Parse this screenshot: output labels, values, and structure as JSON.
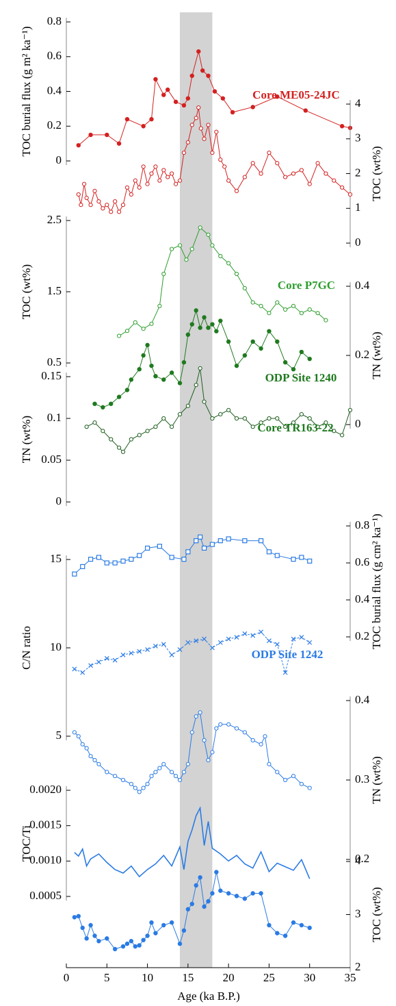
{
  "chart_data": {
    "type": "line",
    "xlabel": "Age (ka B.P.)",
    "xlim": [
      0,
      35
    ],
    "xticks": [
      0,
      5,
      10,
      15,
      20,
      25,
      30,
      35
    ],
    "highlight": [
      14,
      18
    ],
    "highlight_color": "#d3d3d3",
    "annotations": [
      {
        "text": "Core ME05-24JC",
        "color": "#d42020"
      },
      {
        "text": "Core P7GC",
        "color": "#2e9e2e"
      },
      {
        "text": "ODP Site 1240",
        "color": "#1f7a1f"
      },
      {
        "text": "Core TR163-22",
        "color": "#1f7a1f"
      },
      {
        "text": "ODP Site 1242",
        "color": "#2a7be4"
      }
    ],
    "axes": [
      {
        "label": "TOC burial flux (g m² ka⁻¹)",
        "side": "left",
        "ylim": [
          0,
          0.8
        ],
        "yticks": [
          0,
          0.2,
          0.4,
          0.6,
          0.8
        ],
        "series": [
          {
            "color": "#d42020",
            "marker": "filled",
            "dash": false,
            "x": [
              1.5,
              3,
              5,
              6.5,
              7.5,
              9.5,
              10.5,
              11,
              12,
              12.5,
              13.5,
              14.5,
              15,
              15.5,
              16.3,
              16.8,
              17.5,
              18.3,
              19.3,
              20.5,
              23,
              26,
              29.5,
              34,
              35
            ],
            "values": [
              0.09,
              0.15,
              0.15,
              0.1,
              0.24,
              0.2,
              0.24,
              0.47,
              0.38,
              0.41,
              0.34,
              0.32,
              0.36,
              0.49,
              0.63,
              0.52,
              0.49,
              0.4,
              0.36,
              0.28,
              0.31,
              0.37,
              0.29,
              0.2,
              0.19
            ]
          }
        ]
      },
      {
        "label": "TOC (wt%)",
        "side": "right",
        "ylim": [
          0,
          4
        ],
        "yticks": [
          0,
          1,
          2,
          3,
          4
        ],
        "series": [
          {
            "color": "#d42020",
            "marker": "open",
            "dash": false,
            "x": [
              1.5,
              1.8,
              2.2,
              2.5,
              3,
              3.5,
              4,
              4.5,
              5,
              5.5,
              6,
              6.5,
              7,
              7.5,
              8,
              8.5,
              9,
              9.5,
              10,
              10.5,
              11,
              11.5,
              12,
              12.5,
              13,
              13.5,
              14,
              14.5,
              15,
              15.5,
              16,
              16.3,
              16.6,
              17,
              17.5,
              18,
              18.5,
              19,
              19.5,
              20,
              21,
              22,
              23,
              24,
              25,
              26,
              27,
              28,
              29,
              30,
              31,
              32,
              33,
              34,
              35
            ],
            "values": [
              1.4,
              1.1,
              1.7,
              1.3,
              1.1,
              1.5,
              1.2,
              1.0,
              1.1,
              0.9,
              1.2,
              0.9,
              1.1,
              1.6,
              1.4,
              1.8,
              1.6,
              2.2,
              1.7,
              2.0,
              2.2,
              1.8,
              2.1,
              1.9,
              2.0,
              1.7,
              1.8,
              2.6,
              2.9,
              3.4,
              3.6,
              3.9,
              3.3,
              3.0,
              3.4,
              2.6,
              3.2,
              2.4,
              2.2,
              1.8,
              1.5,
              1.9,
              2.3,
              2.0,
              2.6,
              2.3,
              1.9,
              2.0,
              2.1,
              1.7,
              2.3,
              2.0,
              1.8,
              1.6,
              1.4
            ]
          }
        ]
      },
      {
        "label": "TOC (wt%)",
        "side": "left",
        "ylim": [
          0.5,
          2.5
        ],
        "yticks": [
          0.5,
          1.5,
          2.5
        ],
        "series": [
          {
            "color": "#2e9e2e",
            "marker": "open",
            "dash": false,
            "x": [
              6.5,
              7.5,
              8.5,
              9.5,
              10.5,
              11.5,
              12,
              13,
              14,
              14.8,
              15.5,
              16.5,
              17.5,
              18,
              19,
              20,
              21,
              22,
              23,
              24,
              25,
              26,
              27,
              28,
              29,
              30,
              31,
              32
            ],
            "values": [
              0.88,
              0.95,
              1.07,
              0.98,
              1.05,
              1.3,
              1.75,
              2.1,
              2.15,
              1.95,
              2.1,
              2.4,
              2.3,
              2.15,
              2.0,
              1.9,
              1.75,
              1.55,
              1.35,
              1.3,
              1.2,
              1.35,
              1.25,
              1.3,
              1.2,
              1.25,
              1.2,
              1.1
            ]
          }
        ]
      },
      {
        "label": "TN (wt%)",
        "side": "right",
        "ylim": [
          0,
          0.4
        ],
        "yticks": [
          0,
          0.2,
          0.4
        ],
        "series": [
          {
            "color": "#1f7a1f",
            "marker": "filled",
            "dash": false,
            "x": [
              3.5,
              4.5,
              5.5,
              6.5,
              7.5,
              8,
              9,
              9.5,
              10,
              10.5,
              11,
              12,
              13,
              14,
              14.5,
              15,
              15.5,
              16,
              16.5,
              17,
              17.5,
              18,
              18.5,
              19,
              20,
              21,
              22,
              23,
              24,
              25,
              26,
              27,
              28,
              29,
              30
            ],
            "values": [
              0.06,
              0.05,
              0.06,
              0.08,
              0.1,
              0.13,
              0.16,
              0.2,
              0.23,
              0.17,
              0.14,
              0.13,
              0.15,
              0.12,
              0.18,
              0.26,
              0.29,
              0.33,
              0.28,
              0.31,
              0.28,
              0.29,
              0.27,
              0.3,
              0.24,
              0.17,
              0.2,
              0.24,
              0.22,
              0.27,
              0.24,
              0.18,
              0.16,
              0.21,
              0.19
            ]
          }
        ]
      },
      {
        "label": "TN (wt%)",
        "side": "left",
        "ylim": [
          0,
          0.15
        ],
        "yticks": [
          0,
          0.05,
          0.1,
          0.15
        ],
        "series": [
          {
            "color": "#1f5e1f",
            "marker": "open",
            "dash": false,
            "x": [
              2.5,
              3.5,
              4.5,
              5.5,
              6.5,
              7,
              8,
              9,
              10,
              11,
              12,
              13,
              14,
              15,
              16,
              16.5,
              17,
              18,
              19,
              20,
              21,
              22,
              23,
              24,
              25,
              26,
              27,
              28,
              29,
              30,
              31,
              32,
              33,
              34,
              35
            ],
            "values": [
              0.09,
              0.095,
              0.085,
              0.075,
              0.065,
              0.06,
              0.075,
              0.08,
              0.085,
              0.09,
              0.1,
              0.09,
              0.105,
              0.115,
              0.14,
              0.16,
              0.12,
              0.1,
              0.105,
              0.11,
              0.1,
              0.1,
              0.09,
              0.095,
              0.1,
              0.1,
              0.09,
              0.095,
              0.105,
              0.1,
              0.09,
              0.095,
              0.085,
              0.08,
              0.11
            ]
          }
        ]
      },
      {
        "label": "TOC burial flux (g cm² ka⁻¹)",
        "side": "right",
        "ylim": [
          0.2,
          0.8
        ],
        "yticks": [
          0.2,
          0.4,
          0.6,
          0.8
        ],
        "series": [
          {
            "color": "#2a7be4",
            "marker": "square",
            "dash": false,
            "x": [
              1,
              2,
              3,
              4,
              5,
              6,
              7,
              8,
              9,
              10,
              11.5,
              13,
              14.5,
              15,
              16,
              16.5,
              17,
              18,
              19,
              20,
              22,
              24,
              25,
              26,
              28,
              29,
              30
            ],
            "values": [
              0.54,
              0.58,
              0.62,
              0.63,
              0.6,
              0.6,
              0.61,
              0.62,
              0.64,
              0.68,
              0.69,
              0.63,
              0.62,
              0.66,
              0.72,
              0.74,
              0.68,
              0.7,
              0.72,
              0.73,
              0.72,
              0.72,
              0.66,
              0.64,
              0.62,
              0.63,
              0.61
            ]
          }
        ]
      },
      {
        "label": "C/N ratio",
        "side": "left",
        "ylim": [
          5,
          15
        ],
        "yticks": [
          5,
          10,
          15
        ],
        "series": [
          {
            "color": "#2a7be4",
            "marker": "cross",
            "dash": true,
            "x": [
              1,
              2,
              3,
              4,
              5,
              6,
              7,
              8,
              9,
              10,
              11,
              12,
              13,
              14,
              15,
              16,
              17,
              18,
              19,
              20,
              21,
              22,
              23,
              24,
              25,
              26,
              27,
              28,
              29,
              30
            ],
            "values": [
              8.8,
              8.6,
              9.0,
              9.2,
              9.4,
              9.3,
              9.6,
              9.7,
              9.8,
              9.9,
              10.1,
              10.2,
              9.6,
              9.9,
              10.3,
              10.4,
              10.5,
              10.0,
              10.3,
              10.5,
              10.6,
              10.8,
              10.7,
              10.9,
              10.4,
              10.2,
              8.6,
              10.5,
              10.6,
              10.3
            ]
          }
        ]
      },
      {
        "label": "TN (wt%)",
        "side": "right",
        "ylim": [
          0.2,
          0.4
        ],
        "yticks": [
          0.2,
          0.3,
          0.4
        ],
        "series": [
          {
            "color": "#2a7be4",
            "marker": "open",
            "dash": false,
            "x": [
              1,
              1.5,
              2,
              2.5,
              3,
              3.5,
              4,
              5,
              6,
              7,
              8,
              8.5,
              9,
              9.5,
              10,
              10.5,
              11,
              11.5,
              12,
              13,
              13.5,
              14,
              14.5,
              15,
              15.5,
              16,
              16.5,
              17,
              17.5,
              18,
              18.5,
              19,
              20,
              21,
              22,
              23,
              24,
              24.5,
              25,
              26,
              27,
              28,
              29,
              30
            ],
            "values": [
              0.36,
              0.355,
              0.345,
              0.34,
              0.33,
              0.325,
              0.32,
              0.31,
              0.305,
              0.3,
              0.295,
              0.29,
              0.285,
              0.29,
              0.295,
              0.305,
              0.31,
              0.315,
              0.32,
              0.31,
              0.305,
              0.3,
              0.31,
              0.32,
              0.36,
              0.38,
              0.385,
              0.35,
              0.325,
              0.335,
              0.365,
              0.37,
              0.37,
              0.365,
              0.36,
              0.35,
              0.345,
              0.355,
              0.32,
              0.31,
              0.3,
              0.305,
              0.295,
              0.29
            ]
          }
        ]
      },
      {
        "label": "TOC/Ti",
        "side": "left",
        "ylim": [
          0.0005,
          0.002
        ],
        "yticks": [
          {
            "value": 0.0005,
            "label": "0.0005"
          },
          {
            "value": 0.001,
            "label": "0.0010"
          },
          {
            "value": 0.0015,
            "label": "0.0015"
          },
          {
            "value": 0.002,
            "label": "0.0020"
          }
        ],
        "series": [
          {
            "color": "#2a7be4",
            "marker": "none",
            "dash": false,
            "x": [
              1,
              1.5,
              2,
              2.5,
              3,
              4,
              5,
              6,
              7,
              8,
              9,
              10,
              11,
              12,
              13,
              14,
              14.5,
              15,
              15.5,
              16,
              16.5,
              17,
              17.5,
              18,
              19,
              20,
              21,
              22,
              23,
              24,
              25,
              26,
              27,
              28,
              29,
              30
            ],
            "values": [
              0.00112,
              0.00107,
              0.00117,
              0.00093,
              0.00103,
              0.0011,
              0.00098,
              0.00088,
              0.00083,
              0.00093,
              0.00078,
              0.00088,
              0.00096,
              0.00108,
              0.00093,
              0.0012,
              0.00088,
              0.00128,
              0.00144,
              0.00164,
              0.00175,
              0.00122,
              0.00156,
              0.00118,
              0.0011,
              0.001,
              0.00108,
              0.00096,
              0.0009,
              0.00113,
              0.00085,
              0.00097,
              0.00092,
              0.00087,
              0.00102,
              0.00075
            ]
          }
        ]
      },
      {
        "label": "TOC (wt%)",
        "side": "right",
        "ylim": [
          2,
          4
        ],
        "yticks": [
          2,
          3,
          4
        ],
        "series": [
          {
            "color": "#2a7be4",
            "marker": "filled",
            "dash": false,
            "x": [
              1,
              1.5,
              2,
              2.5,
              3,
              3.5,
              4,
              5,
              6,
              7,
              7.5,
              8,
              8.5,
              9,
              9.5,
              10,
              10.5,
              11,
              12,
              13,
              14,
              14.5,
              15,
              15.5,
              16,
              16.5,
              17,
              17.5,
              18,
              18.5,
              19,
              20,
              21,
              22,
              23,
              24,
              25,
              26,
              27,
              28,
              29,
              30
            ],
            "values": [
              2.95,
              2.97,
              2.75,
              2.55,
              2.8,
              2.6,
              2.5,
              2.55,
              2.35,
              2.4,
              2.45,
              2.5,
              2.4,
              2.42,
              2.52,
              2.6,
              2.85,
              2.65,
              2.8,
              2.85,
              2.45,
              2.7,
              3.1,
              3.2,
              3.55,
              3.7,
              3.15,
              3.25,
              3.4,
              3.8,
              3.45,
              3.4,
              3.35,
              3.3,
              3.4,
              3.4,
              2.8,
              2.65,
              2.6,
              2.85,
              2.8,
              2.75
            ]
          }
        ]
      }
    ]
  }
}
